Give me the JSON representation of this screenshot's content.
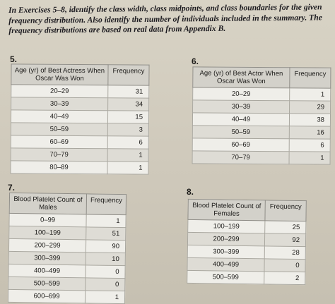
{
  "intro": {
    "text": "In Exercises 5–8, identify the class width, class midpoints, and class boundaries for the given frequency distribution. Also identify the number of individuals included in the summary. The frequency distributions are based on real data from Appendix B."
  },
  "exercises": [
    {
      "number": "5.",
      "col1": "Age (yr) of Best Actress When Oscar Was Won",
      "col2": "Frequency",
      "rows": [
        {
          "cls": "20–29",
          "freq": "31"
        },
        {
          "cls": "30–39",
          "freq": "34"
        },
        {
          "cls": "40–49",
          "freq": "15"
        },
        {
          "cls": "50–59",
          "freq": "3"
        },
        {
          "cls": "60–69",
          "freq": "6"
        },
        {
          "cls": "70–79",
          "freq": "1"
        },
        {
          "cls": "80–89",
          "freq": "1"
        }
      ]
    },
    {
      "number": "6.",
      "col1": "Age (yr) of Best Actor When Oscar Was Won",
      "col2": "Frequency",
      "rows": [
        {
          "cls": "20–29",
          "freq": "1"
        },
        {
          "cls": "30–39",
          "freq": "29"
        },
        {
          "cls": "40–49",
          "freq": "38"
        },
        {
          "cls": "50–59",
          "freq": "16"
        },
        {
          "cls": "60–69",
          "freq": "6"
        },
        {
          "cls": "70–79",
          "freq": "1"
        }
      ]
    },
    {
      "number": "7.",
      "col1": "Blood Platelet Count of Males",
      "col2": "Frequency",
      "rows": [
        {
          "cls": "0–99",
          "freq": "1"
        },
        {
          "cls": "100–199",
          "freq": "51"
        },
        {
          "cls": "200–299",
          "freq": "90"
        },
        {
          "cls": "300–399",
          "freq": "10"
        },
        {
          "cls": "400–499",
          "freq": "0"
        },
        {
          "cls": "500–599",
          "freq": "0"
        },
        {
          "cls": "600–699",
          "freq": "1"
        }
      ]
    },
    {
      "number": "8.",
      "col1": "Blood Platelet Count of Females",
      "col2": "Frequency",
      "rows": [
        {
          "cls": "100–199",
          "freq": "25"
        },
        {
          "cls": "200–299",
          "freq": "92"
        },
        {
          "cls": "300–399",
          "freq": "28"
        },
        {
          "cls": "400–499",
          "freq": "0"
        },
        {
          "cls": "500–599",
          "freq": "2"
        }
      ]
    }
  ]
}
